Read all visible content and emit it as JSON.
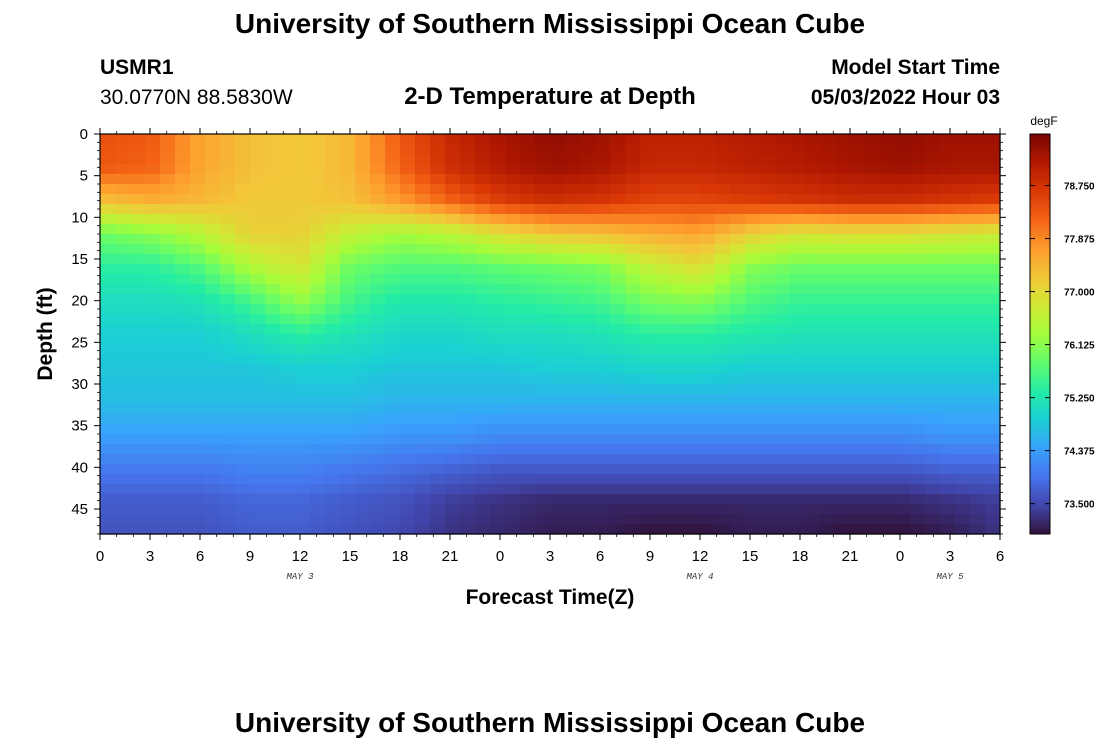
{
  "header": {
    "title": "University of Southern Mississippi Ocean Cube",
    "station": "USMR1",
    "coords": "30.0770N  88.5830W",
    "subtitle": "2-D Temperature at Depth",
    "model_start_label": "Model Start Time",
    "model_start_value": "05/03/2022 Hour 03"
  },
  "footer": {
    "title": "University of Southern Mississippi Ocean Cube"
  },
  "colors": {
    "colormap": [
      "#30123b",
      "#4145ab",
      "#4675ed",
      "#39a2fc",
      "#1bcfd4",
      "#24eca6",
      "#61fc6c",
      "#a4fc3b",
      "#d1e834",
      "#f3c63a",
      "#fe9b2d",
      "#f36315",
      "#d93806",
      "#b11901",
      "#7a0402"
    ]
  },
  "chart_data": {
    "type": "heatmap",
    "title": "2-D Temperature at Depth",
    "xlabel": "Forecast Time(Z)",
    "ylabel": "Depth (ft)",
    "x_unit": "hours since May 3 00Z",
    "xlim": [
      0,
      54
    ],
    "ylim": [
      0,
      48
    ],
    "x_ticks": [
      {
        "v": 0,
        "label": "0"
      },
      {
        "v": 3,
        "label": "3"
      },
      {
        "v": 6,
        "label": "6"
      },
      {
        "v": 9,
        "label": "9"
      },
      {
        "v": 12,
        "label": "12"
      },
      {
        "v": 15,
        "label": "15"
      },
      {
        "v": 18,
        "label": "18"
      },
      {
        "v": 21,
        "label": "21"
      },
      {
        "v": 24,
        "label": "0"
      },
      {
        "v": 27,
        "label": "3"
      },
      {
        "v": 30,
        "label": "6"
      },
      {
        "v": 33,
        "label": "9"
      },
      {
        "v": 36,
        "label": "12"
      },
      {
        "v": 39,
        "label": "15"
      },
      {
        "v": 42,
        "label": "18"
      },
      {
        "v": 45,
        "label": "21"
      },
      {
        "v": 48,
        "label": "0"
      },
      {
        "v": 51,
        "label": "3"
      },
      {
        "v": 54,
        "label": "6"
      }
    ],
    "y_ticks": [
      0,
      5,
      10,
      15,
      20,
      25,
      30,
      35,
      40,
      45
    ],
    "date_labels": [
      {
        "v": 12,
        "label": "MAY 3"
      },
      {
        "v": 36,
        "label": "MAY 4"
      },
      {
        "v": 51,
        "label": "MAY 5"
      }
    ],
    "colorbar": {
      "unit": "degF",
      "range": [
        73.0,
        79.6
      ],
      "ticks": [
        "73.500",
        "74.375",
        "75.250",
        "76.125",
        "77.000",
        "77.875",
        "78.750"
      ],
      "tick_values": [
        73.5,
        74.375,
        75.25,
        76.125,
        77.0,
        77.875,
        78.75
      ]
    },
    "grid_x_hours": [
      0,
      3,
      6,
      9,
      12,
      15,
      18,
      21,
      24,
      27,
      30,
      33,
      36,
      39,
      42,
      45,
      48,
      51,
      54
    ],
    "grid_y_depths": [
      0,
      4,
      8,
      12,
      16,
      20,
      24,
      28,
      32,
      36,
      40,
      44,
      48
    ],
    "values": [
      [
        78.4,
        78.3,
        77.6,
        77.3,
        77.2,
        77.4,
        78.3,
        78.9,
        79.2,
        79.4,
        79.3,
        79.0,
        79.0,
        79.1,
        79.2,
        79.3,
        79.4,
        79.3,
        79.3
      ],
      [
        78.3,
        78.2,
        77.6,
        77.3,
        77.2,
        77.4,
        78.2,
        78.8,
        79.1,
        79.3,
        79.2,
        78.9,
        78.9,
        79.0,
        79.1,
        79.2,
        79.3,
        79.2,
        79.2
      ],
      [
        77.3,
        77.5,
        77.4,
        77.2,
        77.2,
        77.3,
        77.7,
        78.2,
        78.6,
        78.8,
        78.7,
        78.5,
        78.5,
        78.6,
        78.7,
        78.8,
        78.8,
        78.7,
        78.6
      ],
      [
        75.9,
        76.1,
        76.5,
        77.1,
        77.1,
        76.6,
        76.3,
        76.5,
        76.9,
        77.2,
        77.3,
        77.5,
        77.6,
        77.1,
        76.8,
        76.9,
        76.9,
        76.8,
        76.7
      ],
      [
        75.4,
        75.4,
        75.7,
        76.4,
        76.8,
        75.9,
        75.7,
        75.7,
        75.8,
        75.9,
        76.0,
        76.6,
        76.9,
        76.1,
        75.9,
        75.9,
        75.9,
        75.9,
        75.9
      ],
      [
        75.1,
        75.1,
        75.2,
        75.6,
        76.2,
        75.6,
        75.3,
        75.3,
        75.4,
        75.5,
        75.6,
        76.0,
        76.1,
        75.7,
        75.5,
        75.5,
        75.5,
        75.5,
        75.5
      ],
      [
        74.9,
        74.9,
        74.9,
        75.1,
        75.4,
        75.2,
        75.0,
        75.0,
        75.1,
        75.1,
        75.2,
        75.4,
        75.4,
        75.3,
        75.2,
        75.2,
        75.2,
        75.2,
        75.2
      ],
      [
        74.8,
        74.8,
        74.8,
        74.8,
        74.9,
        74.9,
        74.8,
        74.8,
        74.8,
        74.9,
        74.9,
        75.0,
        75.0,
        74.9,
        74.9,
        74.9,
        74.9,
        74.9,
        74.9
      ],
      [
        74.7,
        74.7,
        74.7,
        74.7,
        74.7,
        74.7,
        74.6,
        74.6,
        74.6,
        74.6,
        74.6,
        74.6,
        74.6,
        74.6,
        74.6,
        74.6,
        74.6,
        74.6,
        74.6
      ],
      [
        74.4,
        74.4,
        74.4,
        74.4,
        74.4,
        74.4,
        74.3,
        74.3,
        74.2,
        74.2,
        74.2,
        74.2,
        74.2,
        74.2,
        74.2,
        74.2,
        74.2,
        74.3,
        74.3
      ],
      [
        74.0,
        74.0,
        74.0,
        74.1,
        74.1,
        74.0,
        73.9,
        73.8,
        73.7,
        73.7,
        73.7,
        73.7,
        73.7,
        73.7,
        73.7,
        73.7,
        73.7,
        73.8,
        73.8
      ],
      [
        73.7,
        73.7,
        73.7,
        73.8,
        73.8,
        73.7,
        73.6,
        73.4,
        73.3,
        73.2,
        73.2,
        73.2,
        73.2,
        73.2,
        73.2,
        73.2,
        73.2,
        73.3,
        73.4
      ],
      [
        73.6,
        73.6,
        73.6,
        73.7,
        73.7,
        73.6,
        73.5,
        73.3,
        73.2,
        73.1,
        73.1,
        73.0,
        73.0,
        73.1,
        73.1,
        73.0,
        73.0,
        73.1,
        73.3
      ]
    ]
  }
}
